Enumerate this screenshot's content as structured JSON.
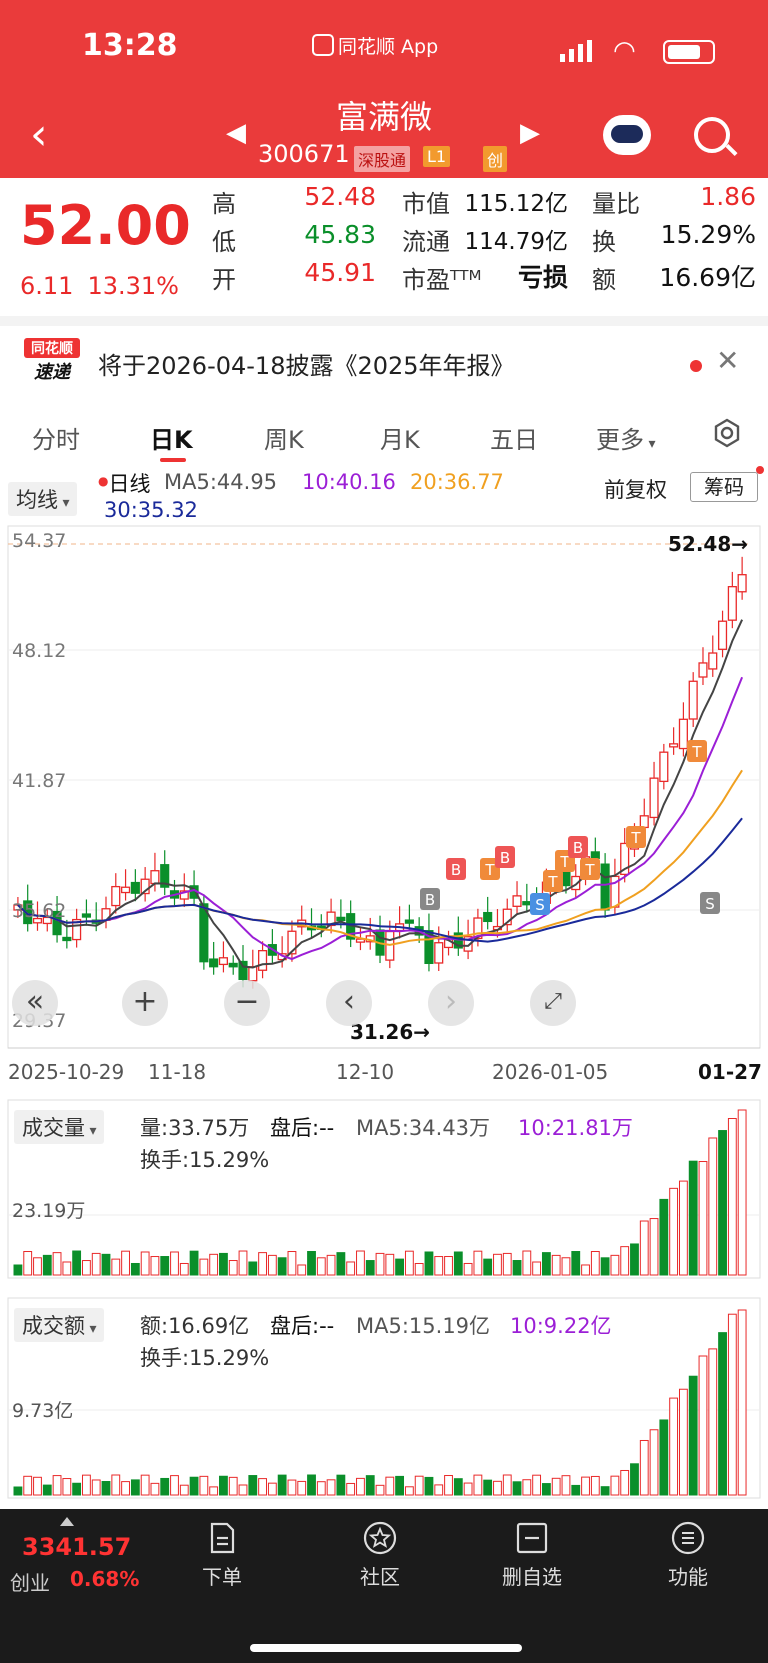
{
  "status": {
    "time": "13:28",
    "app_name": "同花顺 App"
  },
  "header": {
    "stock_name": "富满微",
    "stock_code": "300671",
    "tags": [
      "深股通",
      "L1",
      "创"
    ]
  },
  "quote": {
    "price": "52.00",
    "change": "6.11",
    "change_pct": "13.31%",
    "rows": [
      {
        "l1": "高",
        "v1": "52.48",
        "l2": "市值",
        "v2": "115.12亿",
        "l3": "量比",
        "v3": "1.86"
      },
      {
        "l1": "低",
        "v1": "45.83",
        "l2": "流通",
        "v2": "114.79亿",
        "l3": "换",
        "v3": "15.29%"
      },
      {
        "l1": "开",
        "v1": "45.91",
        "l2": "市盈ᵀᵀᴹ",
        "v2": "亏损",
        "l3": "额",
        "v3": "16.69亿"
      }
    ]
  },
  "notice": {
    "logo_top": "同花顺",
    "logo_bottom": "速递",
    "text": "将于2026-04-18披露《2025年年报》"
  },
  "tabs": [
    "分时",
    "日K",
    "周K",
    "月K",
    "五日",
    "更多"
  ],
  "kline": {
    "indicator": "均线",
    "period": "日线",
    "ma5": "MA5:44.95",
    "ma10": "10:40.16",
    "ma20": "20:36.77",
    "ma30": "30:35.32",
    "adjust": "前复权",
    "chip_button": "筹码",
    "y_labels": [
      "54.37",
      "48.12",
      "41.87",
      "35.62",
      "29.37"
    ],
    "high_marker": "52.48→",
    "low_marker": "31.26→",
    "x_labels": [
      "2025-10-29",
      "11-18",
      "12-10",
      "2026-01-05",
      "01-27"
    ]
  },
  "volume": {
    "indicator": "成交量",
    "vol": "量:33.75万",
    "after": "盘后:--",
    "ma5": "MA5:34.43万",
    "ma10": "10:21.81万",
    "turnover": "换手:15.29%",
    "y_label": "23.19万"
  },
  "amount": {
    "indicator": "成交额",
    "amt": "额:16.69亿",
    "after": "盘后:--",
    "ma5": "MA5:15.19亿",
    "ma10": "10:9.22亿",
    "turnover": "换手:15.29%",
    "y_label": "9.73亿"
  },
  "bottom": {
    "index_value": "3341.57",
    "index_name": "创业",
    "index_change": "0.68%",
    "nav": [
      "下单",
      "社区",
      "删自选",
      "功能"
    ]
  },
  "colors": {
    "up": "#e92929",
    "down": "#0a8f2a",
    "brand": "#ea3b3b"
  }
}
